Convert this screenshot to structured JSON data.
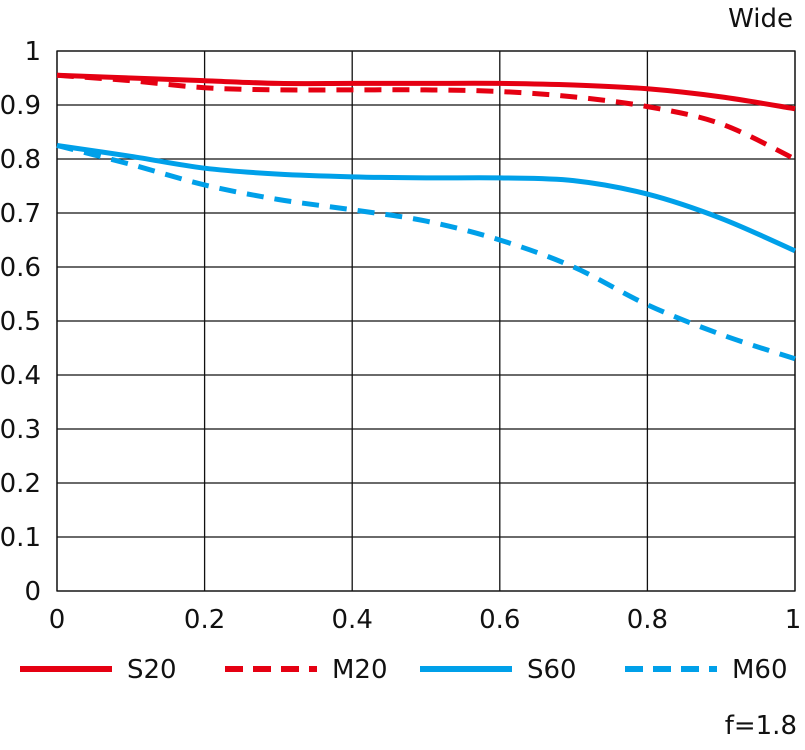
{
  "chart_data": {
    "type": "line",
    "title": "Wide",
    "footnote": "f=1.8",
    "xlabel": "",
    "ylabel": "",
    "xlim": [
      0,
      1
    ],
    "ylim": [
      0,
      1
    ],
    "grid": true,
    "x": [
      0,
      0.1,
      0.2,
      0.3,
      0.4,
      0.5,
      0.6,
      0.7,
      0.8,
      0.9,
      1.0
    ],
    "xticks": [
      "0",
      "0.2",
      "0.4",
      "0.6",
      "0.8",
      "1"
    ],
    "yticks": [
      "0",
      "0.1",
      "0.2",
      "0.3",
      "0.4",
      "0.5",
      "0.6",
      "0.7",
      "0.8",
      "0.9",
      "1"
    ],
    "legend_placement": "bottom",
    "series": [
      {
        "name": "S20",
        "color": "#e50012",
        "dashed": false,
        "values": [
          0.955,
          0.95,
          0.945,
          0.94,
          0.94,
          0.94,
          0.94,
          0.937,
          0.93,
          0.915,
          0.893
        ]
      },
      {
        "name": "M20",
        "color": "#e50012",
        "dashed": true,
        "values": [
          0.955,
          0.945,
          0.932,
          0.928,
          0.928,
          0.928,
          0.925,
          0.915,
          0.897,
          0.865,
          0.8
        ]
      },
      {
        "name": "S60",
        "color": "#00a0e9",
        "dashed": false,
        "values": [
          0.825,
          0.805,
          0.783,
          0.772,
          0.767,
          0.765,
          0.765,
          0.76,
          0.735,
          0.69,
          0.63
        ]
      },
      {
        "name": "M60",
        "color": "#00a0e9",
        "dashed": true,
        "values": [
          0.825,
          0.79,
          0.752,
          0.725,
          0.706,
          0.685,
          0.65,
          0.6,
          0.53,
          0.475,
          0.43
        ]
      }
    ]
  }
}
